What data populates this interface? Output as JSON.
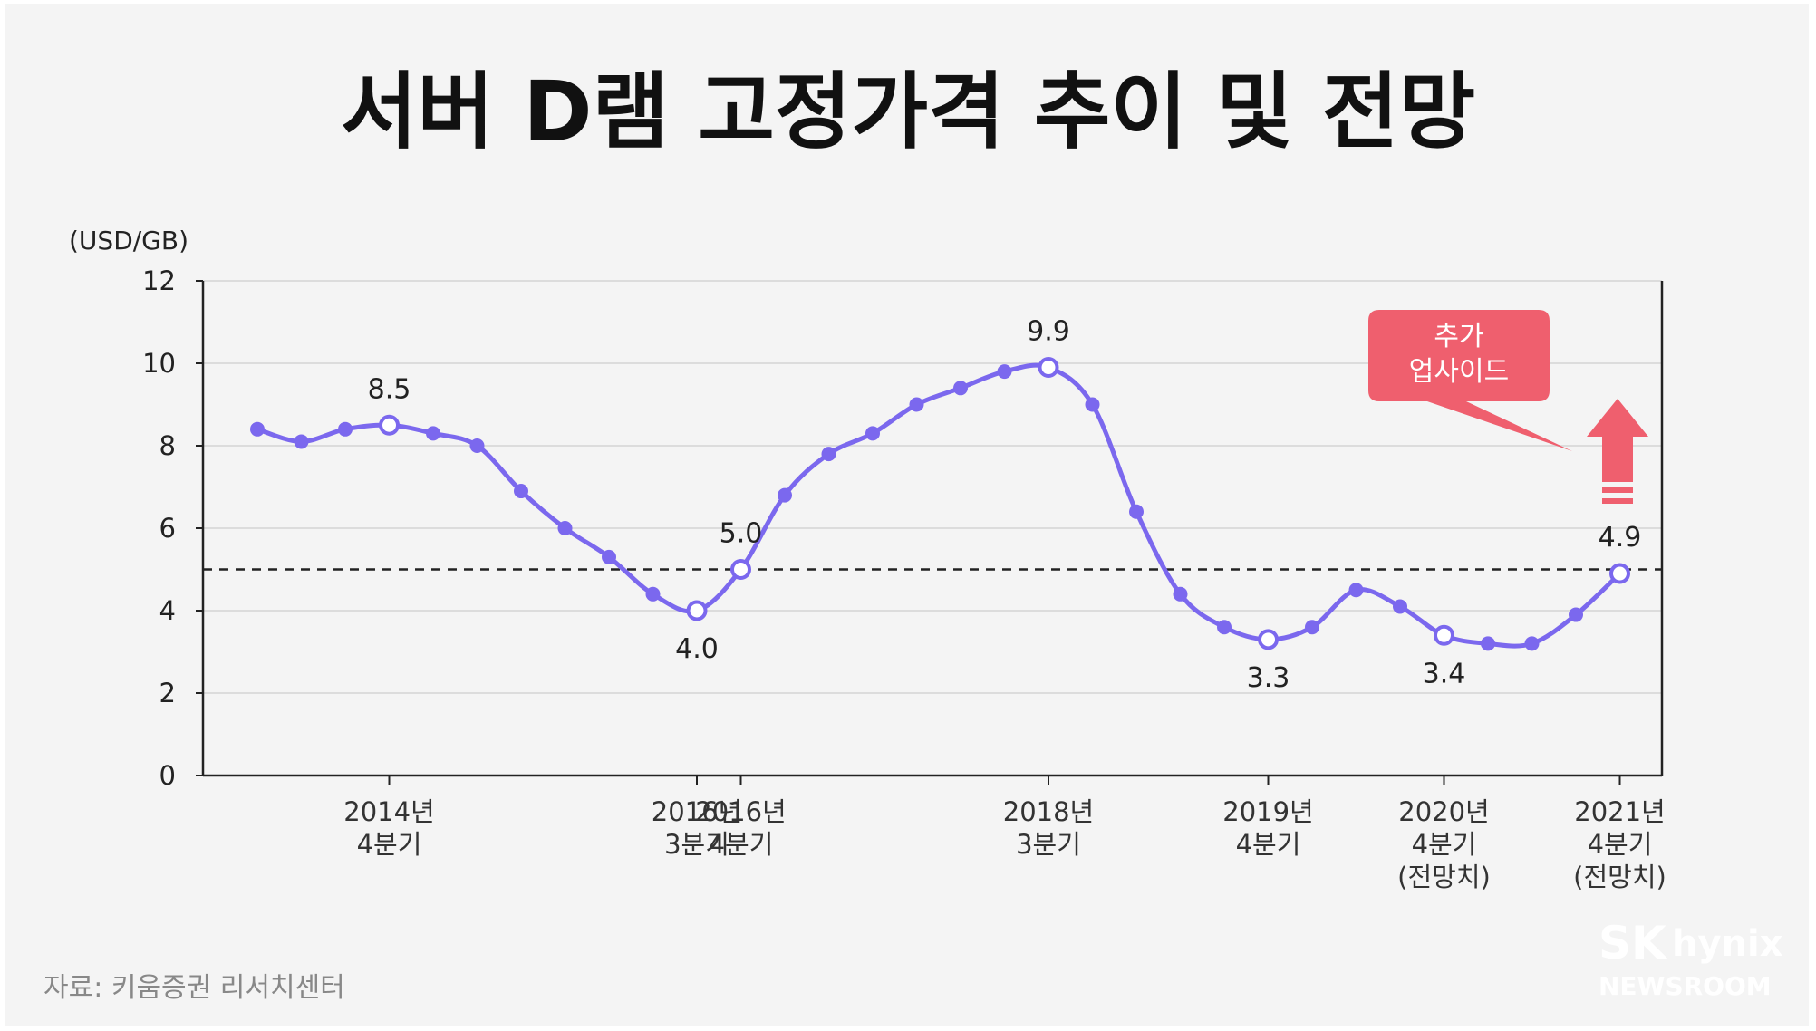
{
  "title": "서버 D램 고정가격 추이 및 전망",
  "source": "자료: 키움증권 리서치센터",
  "brand": {
    "line1a": "SK",
    "line1b": "hynix",
    "line2": "NEWSROOM"
  },
  "callout": {
    "lines": [
      "추가",
      "업사이드"
    ],
    "color": "#ef5f6e"
  },
  "colors": {
    "line": "#7b68ee",
    "accent": "#ef5f6e",
    "reference": "#222222"
  },
  "chart_data": {
    "type": "line",
    "ylabel": "(USD/GB)",
    "ylim": [
      0,
      12
    ],
    "yticks": [
      0,
      2,
      4,
      6,
      8,
      10,
      12
    ],
    "grid": true,
    "reference_line": 5.0,
    "series": [
      {
        "values": [
          8.4,
          8.1,
          8.4,
          8.5,
          8.3,
          8.0,
          6.9,
          6.0,
          5.3,
          4.4,
          4.0,
          5.0,
          6.8,
          7.8,
          8.3,
          9.0,
          9.4,
          9.8,
          9.9,
          9.0,
          6.4,
          4.4,
          3.6,
          3.3,
          3.6,
          4.5,
          4.1,
          3.4,
          3.2,
          3.2,
          3.9,
          4.9
        ]
      }
    ],
    "highlighted": [
      {
        "index": 3,
        "label": "8.5",
        "pos": "above",
        "x_label": [
          "2014년",
          "4분기"
        ]
      },
      {
        "index": 10,
        "label": "4.0",
        "pos": "below",
        "x_label": [
          "2016년",
          "3분기"
        ]
      },
      {
        "index": 11,
        "label": "5.0",
        "pos": "above",
        "x_label": [
          "2016년",
          "4분기"
        ]
      },
      {
        "index": 18,
        "label": "9.9",
        "pos": "above",
        "x_label": [
          "2018년",
          "3분기"
        ]
      },
      {
        "index": 23,
        "label": "3.3",
        "pos": "below",
        "x_label": [
          "2019년",
          "4분기"
        ]
      },
      {
        "index": 27,
        "label": "3.4",
        "pos": "below",
        "x_label": [
          "2020년",
          "4분기",
          "(전망치)"
        ]
      },
      {
        "index": 31,
        "label": "4.9",
        "pos": "above",
        "x_label": [
          "2021년",
          "4분기",
          "(전망치)"
        ]
      }
    ]
  }
}
